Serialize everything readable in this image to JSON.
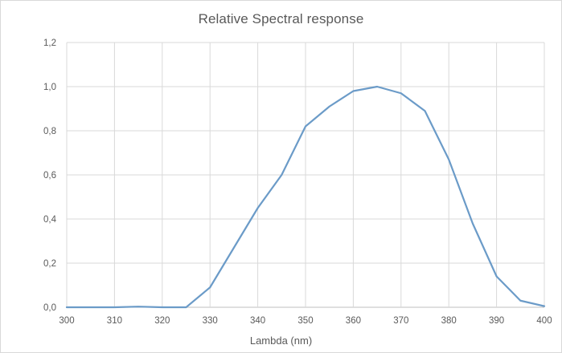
{
  "chart_data": {
    "type": "line",
    "title": "Relative Spectral response",
    "xlabel": "Lambda (nm)",
    "ylabel": "",
    "xlim": [
      300,
      400
    ],
    "ylim": [
      0,
      1.2
    ],
    "x_ticks": [
      300,
      310,
      320,
      330,
      340,
      350,
      360,
      370,
      380,
      390,
      400
    ],
    "x_tick_labels": [
      "300",
      "310",
      "320",
      "330",
      "340",
      "350",
      "360",
      "370",
      "380",
      "390",
      "400"
    ],
    "y_ticks": [
      0,
      0.2,
      0.4,
      0.6,
      0.8,
      1.0,
      1.2
    ],
    "y_tick_labels": [
      "0,0",
      "0,2",
      "0,4",
      "0,6",
      "0,8",
      "1,0",
      "1,2"
    ],
    "grid": true,
    "legend": "none",
    "series": [
      {
        "color": "#6b9bc8",
        "x": [
          300,
          305,
          310,
          315,
          320,
          325,
          330,
          335,
          340,
          345,
          350,
          355,
          360,
          365,
          370,
          375,
          380,
          385,
          390,
          395,
          400
        ],
        "y": [
          0,
          0,
          0,
          0.003,
          0,
          0,
          0.09,
          0.27,
          0.45,
          0.6,
          0.82,
          0.91,
          0.98,
          1.0,
          0.97,
          0.89,
          0.67,
          0.38,
          0.14,
          0.03,
          0.005
        ]
      }
    ]
  }
}
